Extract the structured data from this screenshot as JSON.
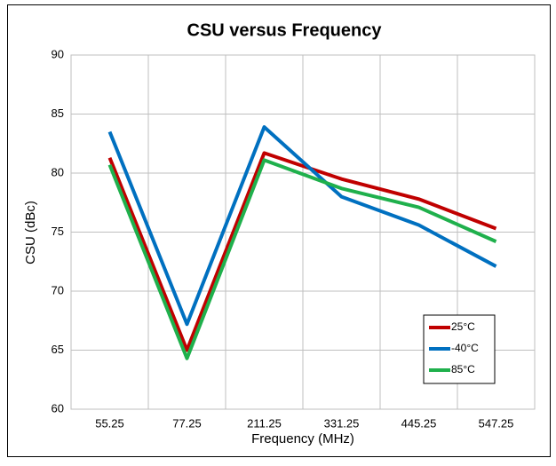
{
  "chart_data": {
    "type": "line",
    "title": "CSU versus Frequency",
    "x_label": "Frequency (MHz)",
    "y_label": "CSU (dBc)",
    "categories": [
      "55.25",
      "77.25",
      "211.25",
      "331.25",
      "445.25",
      "547.25"
    ],
    "series": [
      {
        "name": "25°C",
        "color": "#c00000",
        "values": [
          81.3,
          65.0,
          81.7,
          79.5,
          77.8,
          75.3
        ]
      },
      {
        "name": "-40°C",
        "color": "#0070c0",
        "values": [
          83.5,
          67.2,
          83.9,
          78.0,
          75.6,
          72.1
        ]
      },
      {
        "name": "85°C",
        "color": "#1fb04c",
        "values": [
          80.7,
          64.3,
          81.1,
          78.7,
          77.1,
          74.2
        ]
      }
    ],
    "ylim": [
      60,
      90
    ],
    "yticks": [
      60,
      65,
      70,
      75,
      80,
      85,
      90
    ],
    "grid": true,
    "legend": "lower right"
  }
}
